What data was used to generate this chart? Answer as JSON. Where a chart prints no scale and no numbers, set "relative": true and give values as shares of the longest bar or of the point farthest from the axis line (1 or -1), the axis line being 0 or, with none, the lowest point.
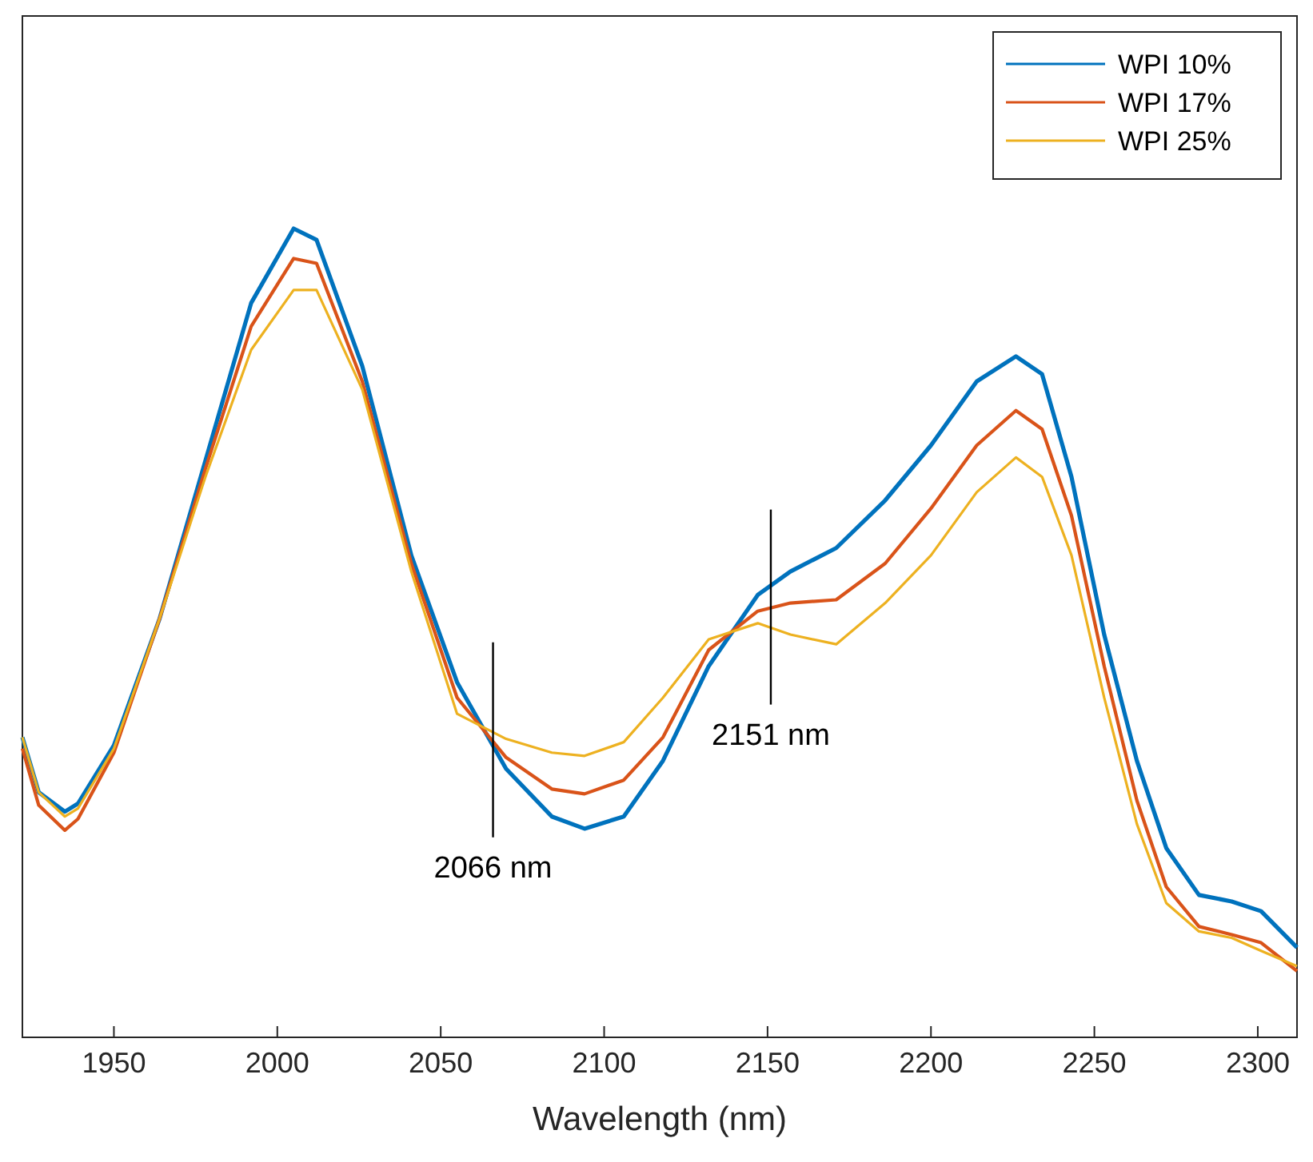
{
  "chart_data": {
    "type": "line",
    "relative": true,
    "xlabel": "Wavelength (nm)",
    "x": [
      1922,
      1927,
      1935,
      1939,
      1950,
      1964,
      1978,
      1992,
      2005,
      2012,
      2026,
      2041,
      2055,
      2070,
      2084,
      2094,
      2106,
      2118,
      2132,
      2147,
      2157,
      2171,
      2186,
      2200,
      2214,
      2226,
      2234,
      2243,
      2253,
      2263,
      2272,
      2282,
      2292,
      2301,
      2312
    ],
    "xlim": [
      1922,
      2312
    ],
    "xticks": [
      1950,
      2000,
      2050,
      2100,
      2150,
      2200,
      2250,
      2300
    ],
    "series": [
      {
        "name": "WPI 10%",
        "color": "#0072bd",
        "values": [
          0.371,
          0.303,
          0.279,
          0.289,
          0.361,
          0.518,
          0.713,
          0.908,
          1.0,
          0.986,
          0.83,
          0.596,
          0.439,
          0.332,
          0.273,
          0.258,
          0.273,
          0.342,
          0.459,
          0.547,
          0.576,
          0.605,
          0.664,
          0.732,
          0.811,
          0.842,
          0.82,
          0.693,
          0.498,
          0.342,
          0.234,
          0.176,
          0.168,
          0.156,
          0.111
        ]
      },
      {
        "name": "WPI 17%",
        "color": "#d95319",
        "values": [
          0.357,
          0.287,
          0.256,
          0.27,
          0.352,
          0.518,
          0.703,
          0.879,
          0.963,
          0.957,
          0.811,
          0.586,
          0.42,
          0.346,
          0.307,
          0.301,
          0.318,
          0.371,
          0.479,
          0.527,
          0.537,
          0.541,
          0.586,
          0.654,
          0.732,
          0.775,
          0.752,
          0.645,
          0.459,
          0.293,
          0.186,
          0.137,
          0.127,
          0.117,
          0.082
        ]
      },
      {
        "name": "WPI 25%",
        "color": "#edb120",
        "values": [
          0.371,
          0.303,
          0.273,
          0.283,
          0.357,
          0.518,
          0.693,
          0.85,
          0.924,
          0.924,
          0.801,
          0.576,
          0.4,
          0.369,
          0.352,
          0.348,
          0.365,
          0.42,
          0.492,
          0.512,
          0.498,
          0.486,
          0.537,
          0.596,
          0.674,
          0.717,
          0.693,
          0.596,
          0.42,
          0.264,
          0.166,
          0.131,
          0.123,
          0.107,
          0.088
        ]
      }
    ],
    "ref_lines": [
      {
        "axis": "x",
        "value": 2066,
        "label": "2066 nm",
        "color": "#000000"
      },
      {
        "axis": "x",
        "value": 2151,
        "label": "2151 nm",
        "color": "#000000"
      }
    ],
    "legend": "top right",
    "grid": false,
    "line_style": "solid"
  }
}
